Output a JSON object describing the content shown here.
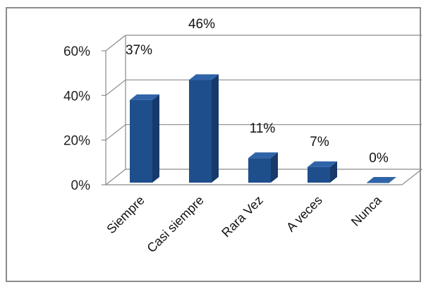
{
  "chart_data": {
    "type": "bar",
    "style": "3d-column",
    "categories": [
      "Siempre",
      "Casi siempre",
      "Rara Vez",
      "A veces",
      "Nunca"
    ],
    "values": [
      37,
      46,
      11,
      7,
      0
    ],
    "data_labels": [
      "37%",
      "46%",
      "11%",
      "7%",
      "0%"
    ],
    "y_ticks": [
      "0%",
      "20%",
      "40%",
      "60%"
    ],
    "ylim": [
      0,
      60
    ],
    "grid": true,
    "legend": "none",
    "colors": {
      "bar_front": "#1f4e8c",
      "bar_side": "#163a6a",
      "bar_top": "#2f64a8",
      "grid": "#8a8a8a",
      "frame": "#8c8c8c"
    }
  }
}
